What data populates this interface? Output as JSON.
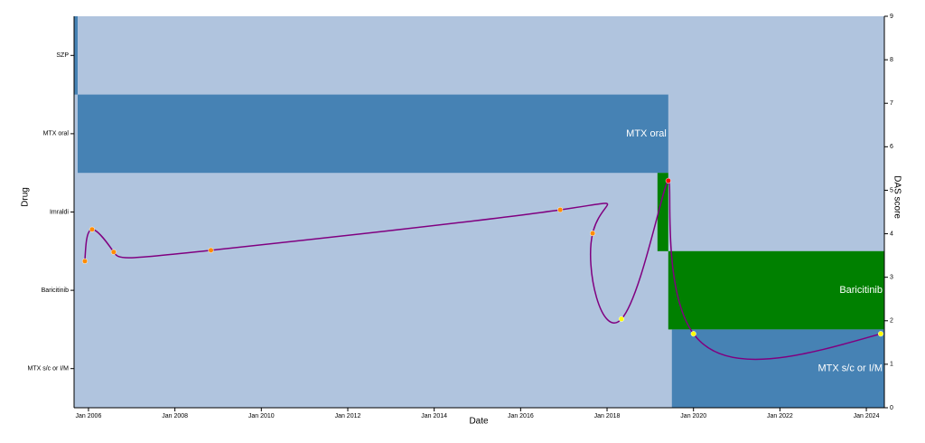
{
  "chart_data": {
    "type": "timeline",
    "x_label": "Date",
    "y_label": "Drug",
    "y2_label": "DAS score",
    "background": "#b0c4de",
    "categories": [
      "SZP",
      "MTX oral",
      "Imraldi",
      "Baricitinib",
      "MTX s/c or I/M"
    ],
    "xlim": [
      "2005-09",
      "2024-06"
    ],
    "xticks": [
      {
        "value": "2006-01",
        "label": "Jan 2006"
      },
      {
        "value": "2008-01",
        "label": "Jan 2008"
      },
      {
        "value": "2010-01",
        "label": "Jan 2010"
      },
      {
        "value": "2012-01",
        "label": "Jan 2012"
      },
      {
        "value": "2014-01",
        "label": "Jan 2014"
      },
      {
        "value": "2016-01",
        "label": "Jan 2016"
      },
      {
        "value": "2018-01",
        "label": "Jan 2018"
      },
      {
        "value": "2020-01",
        "label": "Jan 2020"
      },
      {
        "value": "2022-01",
        "label": "Jan 2022"
      },
      {
        "value": "2024-01",
        "label": "Jan 2024"
      }
    ],
    "y2lim": [
      0,
      9
    ],
    "y2ticks": [
      0,
      1,
      2,
      3,
      4,
      5,
      6,
      7,
      8,
      9
    ],
    "treatments": [
      {
        "drug": "SZP",
        "start": "2005-09",
        "end": "2005-10",
        "color": "#4682b4"
      },
      {
        "drug": "MTX oral",
        "start": "2005-10",
        "end": "2019-06",
        "color": "#4682b4"
      },
      {
        "drug": "Imraldi",
        "start": "2019-03",
        "end": "2019-06",
        "color": "#008000"
      },
      {
        "drug": "Baricitinib",
        "start": "2019-06",
        "end": "2024-06",
        "color": "#008000"
      },
      {
        "drug": "MTX s/c or I/M",
        "start": "2019-07",
        "end": "2024-06",
        "color": "#4682b4"
      }
    ],
    "series": [
      {
        "name": "DAS score",
        "color": "#800080",
        "axis": "y2",
        "x": [
          "2005-12",
          "2006-02",
          "2006-08",
          "2008-11",
          "2016-12",
          "2017-09",
          "2018-05",
          "2019-06",
          "2020-01",
          "2024-05"
        ],
        "values": [
          3.37,
          4.1,
          3.58,
          3.62,
          4.55,
          4.01,
          2.04,
          5.22,
          1.7,
          1.7
        ],
        "point_colors": [
          "#ff8c00",
          "#ff8c00",
          "#ff8c00",
          "#ff8c00",
          "#ff8c00",
          "#ff8c00",
          "#ffff00",
          "#ff0000",
          "#ffff00",
          "#ffff00"
        ]
      }
    ]
  }
}
